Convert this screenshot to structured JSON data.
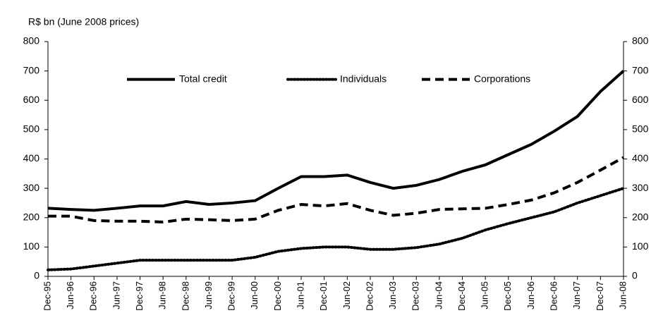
{
  "chart_data": {
    "type": "line",
    "ylabel": "R$ bn (June 2008 prices)",
    "categories": [
      "Dec-95",
      "Jun-96",
      "Dec-96",
      "Jun-97",
      "Dec-97",
      "Jun-98",
      "Dec-98",
      "Jun-99",
      "Dec-99",
      "Jun-00",
      "Dec-00",
      "Jun-01",
      "Dec-01",
      "Jun-02",
      "Dec-02",
      "Jun-03",
      "Dec-03",
      "Jun-04",
      "Dec-04",
      "Jun-05",
      "Dec-05",
      "Jun-06",
      "Dec-06",
      "Jun-07",
      "Dec-07",
      "Jun-08"
    ],
    "series": [
      {
        "name": "Total credit",
        "color": "#000000",
        "style": "solid",
        "values": [
          232,
          228,
          225,
          232,
          240,
          240,
          255,
          245,
          250,
          258,
          300,
          340,
          340,
          345,
          320,
          300,
          310,
          330,
          358,
          380,
          415,
          450,
          495,
          545,
          630,
          700
        ]
      },
      {
        "name": "Individuals",
        "color": "#000000",
        "style": "dotted",
        "values": [
          22,
          25,
          35,
          45,
          55,
          55,
          55,
          55,
          55,
          65,
          85,
          95,
          100,
          100,
          92,
          92,
          98,
          110,
          130,
          158,
          180,
          200,
          220,
          250,
          275,
          300
        ]
      },
      {
        "name": "Corporations",
        "color": "#000000",
        "style": "dashed",
        "values": [
          205,
          205,
          190,
          188,
          188,
          185,
          195,
          193,
          190,
          195,
          225,
          245,
          240,
          248,
          225,
          208,
          215,
          228,
          230,
          232,
          245,
          260,
          285,
          320,
          362,
          405
        ]
      }
    ],
    "ylim": [
      0,
      800
    ],
    "yticks": [
      0,
      100,
      200,
      300,
      400,
      500,
      600,
      700,
      800
    ],
    "y2lim": [
      0,
      800
    ],
    "y2ticks": [
      0,
      100,
      200,
      300,
      400,
      500,
      600,
      700,
      800
    ],
    "legend": "top",
    "grid": false
  }
}
